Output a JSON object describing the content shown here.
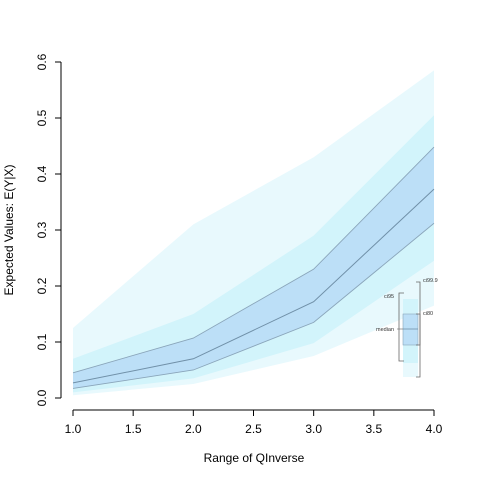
{
  "chart_data": {
    "type": "area",
    "xlabel": "Range of QInverse",
    "ylabel": "Expected Values: E(Y|X)",
    "xlim": [
      1.0,
      4.0
    ],
    "ylim": [
      0.0,
      0.6
    ],
    "x_ticks": [
      "1.0",
      "1.5",
      "2.0",
      "2.5",
      "3.0",
      "3.5",
      "4.0"
    ],
    "y_ticks": [
      "0.0",
      "0.1",
      "0.2",
      "0.3",
      "0.4",
      "0.5",
      "0.6"
    ],
    "x": [
      1.0,
      2.0,
      3.0,
      4.0
    ],
    "bands": [
      {
        "level": "ci99.9",
        "color": "#e8f9fd",
        "lower": [
          0.005,
          0.025,
          0.075,
          0.165
        ],
        "upper": [
          0.125,
          0.31,
          0.43,
          0.585
        ]
      },
      {
        "level": "ci95",
        "color": "#d2f4fb",
        "lower": [
          0.01,
          0.035,
          0.098,
          0.245
        ],
        "upper": [
          0.07,
          0.15,
          0.29,
          0.505
        ]
      },
      {
        "level": "ci80",
        "color": "#bcdff7",
        "lower": [
          0.017,
          0.05,
          0.135,
          0.312
        ],
        "upper": [
          0.045,
          0.107,
          0.23,
          0.448
        ]
      }
    ],
    "median": {
      "color": "#7090a8",
      "values": [
        0.027,
        0.07,
        0.172,
        0.373
      ]
    },
    "legend": {
      "labels": {
        "ci999": "ci99.9",
        "ci95": "ci95",
        "ci80": "ci80",
        "median": "median"
      },
      "placement": "bottom-right"
    }
  }
}
